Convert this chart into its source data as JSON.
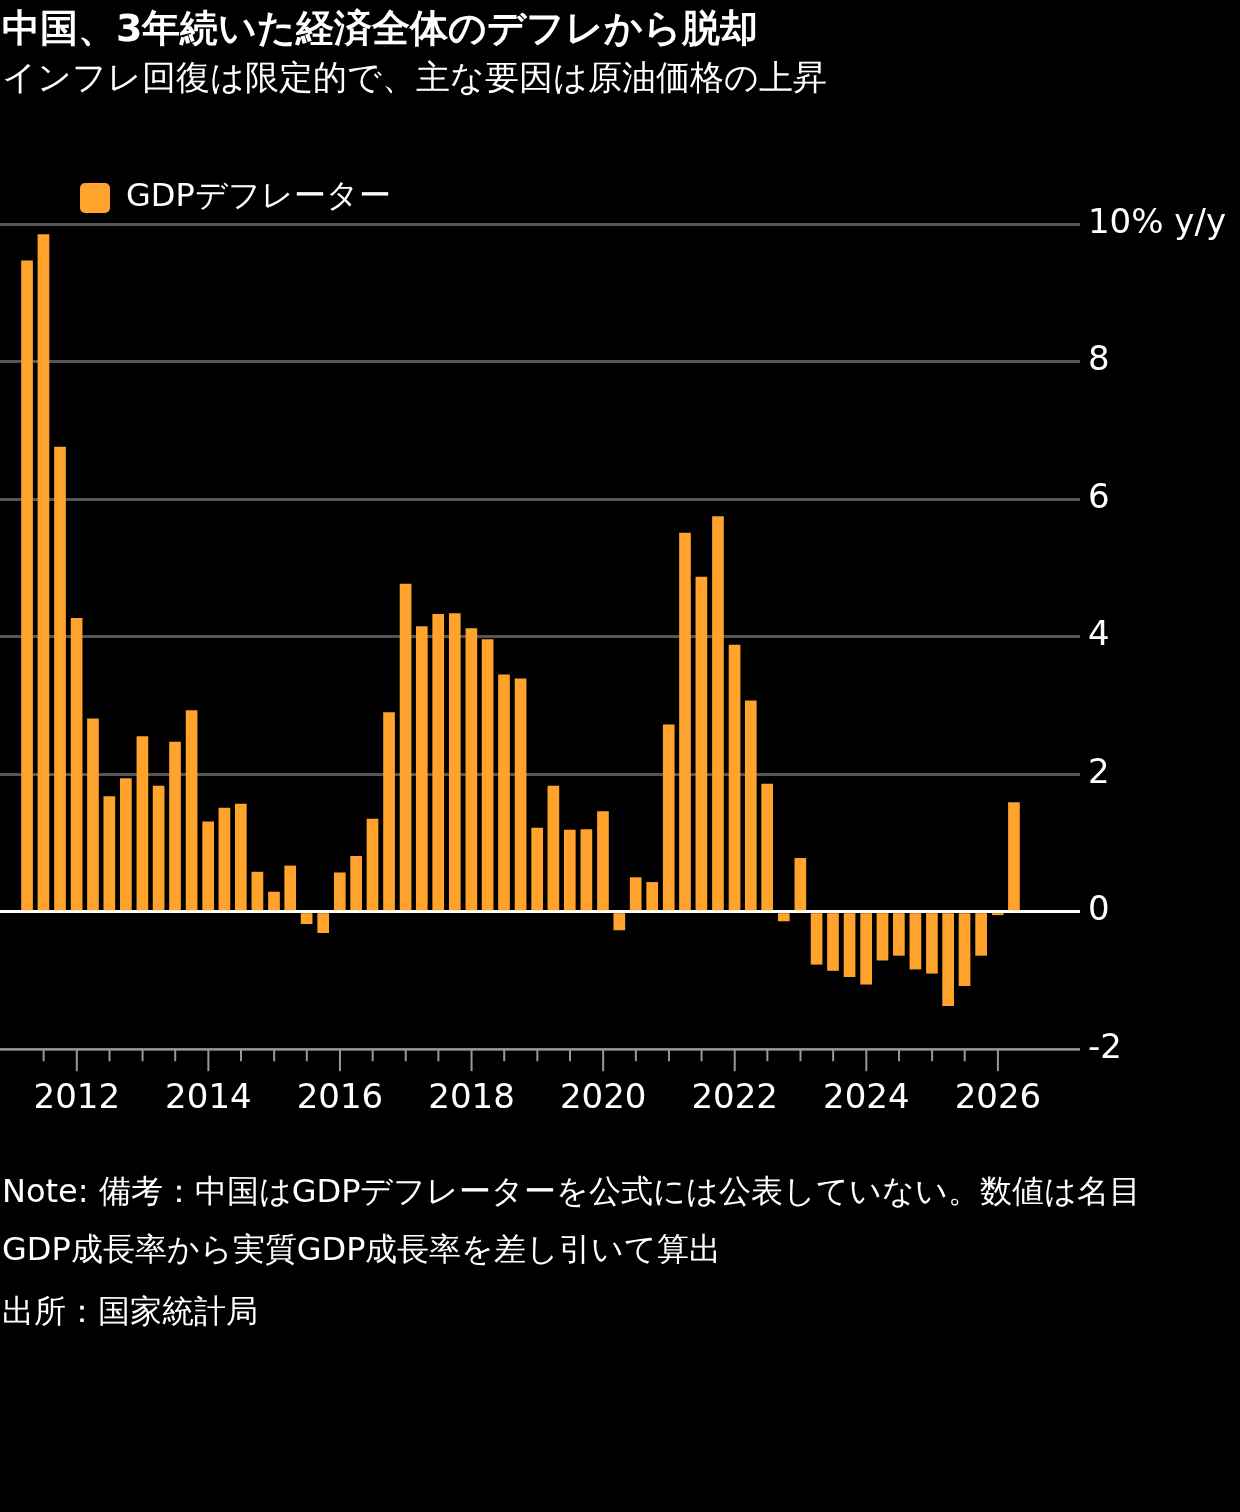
{
  "chart_data": {
    "type": "bar",
    "title": "中国、3年続いた経済全体のデフレから脱却",
    "subtitle": "インフレ回復は限定的で、主な要因は原油価格の上昇",
    "x": [
      "2011-03-31",
      "2011-06-30",
      "2011-09-30",
      "2011-12-31",
      "2012-03-31",
      "2012-06-30",
      "2012-09-30",
      "2012-12-31",
      "2013-03-31",
      "2013-06-30",
      "2013-09-30",
      "2013-12-31",
      "2014-03-31",
      "2014-06-30",
      "2014-09-30",
      "2014-12-31",
      "2015-03-31",
      "2015-06-30",
      "2015-09-30",
      "2015-12-31",
      "2016-03-31",
      "2016-06-30",
      "2016-09-30",
      "2016-12-31",
      "2017-03-31",
      "2017-06-30",
      "2017-09-30",
      "2017-12-31",
      "2018-03-31",
      "2018-06-30",
      "2018-09-30",
      "2018-12-31",
      "2019-03-31",
      "2019-06-30",
      "2019-09-30",
      "2019-12-31",
      "2020-03-31",
      "2020-06-30",
      "2020-09-30",
      "2020-12-31",
      "2021-03-31",
      "2021-06-30",
      "2021-09-30",
      "2021-12-31",
      "2022-03-31",
      "2022-06-30",
      "2022-09-30",
      "2022-12-31",
      "2023-03-31",
      "2023-06-30",
      "2023-09-30",
      "2023-12-31",
      "2024-03-31",
      "2024-06-30",
      "2024-09-30",
      "2024-12-31",
      "2025-03-31",
      "2025-06-30",
      "2025-09-30",
      "2025-12-31",
      "2026-03-31"
    ],
    "series": [
      {
        "name": "GDPデフレーター",
        "color": "#ffa32c",
        "values": [
          9.47,
          9.85,
          6.76,
          4.27,
          2.81,
          1.68,
          1.94,
          2.55,
          1.83,
          2.47,
          2.93,
          1.31,
          1.51,
          1.57,
          0.58,
          0.29,
          0.67,
          -0.18,
          -0.31,
          0.57,
          0.81,
          1.35,
          2.9,
          4.77,
          4.15,
          4.33,
          4.34,
          4.12,
          3.96,
          3.45,
          3.39,
          1.22,
          1.83,
          1.19,
          1.2,
          1.46,
          -0.27,
          0.5,
          0.43,
          2.72,
          5.51,
          4.87,
          5.75,
          3.88,
          3.07,
          1.86,
          -0.14,
          0.78,
          -0.77,
          -0.86,
          -0.95,
          -1.06,
          -0.71,
          -0.64,
          -0.84,
          -0.9,
          -1.37,
          -1.08,
          -0.64,
          -0.05,
          1.59
        ]
      }
    ],
    "xlim": [
      "2010-11-01",
      "2027-04-01"
    ],
    "xticks": [
      {
        "value": "2011-07",
        "label": null
      },
      "2012",
      {
        "value": "2012-07",
        "label": null
      },
      {
        "value": "2013",
        "label": null
      },
      {
        "value": "2013-07",
        "label": null
      },
      "2014",
      {
        "value": "2014-07",
        "label": null
      },
      {
        "value": "2015",
        "label": null
      },
      {
        "value": "2015-07",
        "label": null
      },
      "2016",
      {
        "value": "2016-07",
        "label": null
      },
      {
        "value": "2017",
        "label": null
      },
      {
        "value": "2017-07",
        "label": null
      },
      "2018",
      {
        "value": "2018-07",
        "label": null
      },
      {
        "value": "2019",
        "label": null
      },
      {
        "value": "2019-07",
        "label": null
      },
      "2020",
      {
        "value": "2020-07",
        "label": null
      },
      {
        "value": "2021",
        "label": null
      },
      {
        "value": "2021-07",
        "label": null
      },
      "2022",
      {
        "value": "2022-07",
        "label": null
      },
      {
        "value": "2023",
        "label": null
      },
      {
        "value": "2023-07",
        "label": null
      },
      "2024",
      {
        "value": "2024-07",
        "label": null
      },
      {
        "value": "2025",
        "label": null
      },
      {
        "value": "2025-07",
        "label": null
      },
      "2026"
    ],
    "ylim": [
      -2,
      10
    ],
    "yticks": [
      -2,
      0,
      2,
      4,
      6,
      8,
      {
        "value": 10,
        "label": "10% y/y"
      }
    ],
    "grid": "y",
    "legend": "top left",
    "annotations": [
      "Note: 備考：中国はGDPデフレーターを公式には公表していない。数値は名目GDP成長率から実質GDP成長率を差し引いて算出",
      "出所：国家統計局"
    ]
  }
}
